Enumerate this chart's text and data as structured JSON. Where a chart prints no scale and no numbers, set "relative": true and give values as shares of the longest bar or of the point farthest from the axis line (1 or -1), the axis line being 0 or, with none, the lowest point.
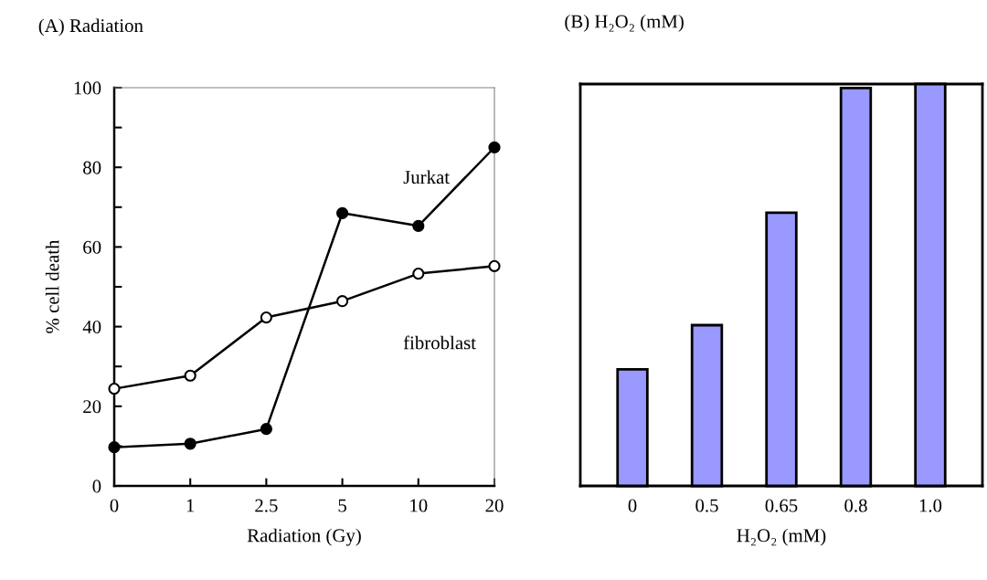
{
  "chart_data": [
    {
      "type": "line",
      "title": "(A) Radiation",
      "xlabel": "Radiation (Gy)",
      "ylabel": "% cell death",
      "categories": [
        "0",
        "1",
        "2.5",
        "5",
        "10",
        "20"
      ],
      "ylim": [
        0,
        100
      ],
      "yticks": [
        0,
        {
          "value": 10,
          "label": null
        },
        20,
        {
          "value": 30,
          "label": null
        },
        40,
        {
          "value": 50,
          "label": null
        },
        60,
        {
          "value": 70,
          "label": null
        },
        80,
        {
          "value": 90,
          "label": null
        },
        100
      ],
      "marker": "circle",
      "line_style": "solid",
      "grid": false,
      "legend": false,
      "series": [
        {
          "name": "Jurkat",
          "color": "#000000",
          "values": [
            9.7,
            10.6,
            14.3,
            68.5,
            65.3,
            85.0
          ]
        },
        {
          "name": "fibroblast",
          "color": "#000000",
          "values": [
            24.4,
            27.7,
            42.3,
            46.4,
            53.3,
            55.2
          ]
        }
      ]
    },
    {
      "type": "bar",
      "title": "(B) H₂O₂ (mM)",
      "xlabel": "H₂O₂ (mM)",
      "categories": [
        "0",
        "0.5",
        "0.65",
        "0.8",
        "1.0"
      ],
      "relative": true,
      "color": "#9999ff",
      "grid": false,
      "legend": false,
      "values": [
        0.29,
        0.4,
        0.68,
        0.99,
        1.0
      ]
    }
  ]
}
